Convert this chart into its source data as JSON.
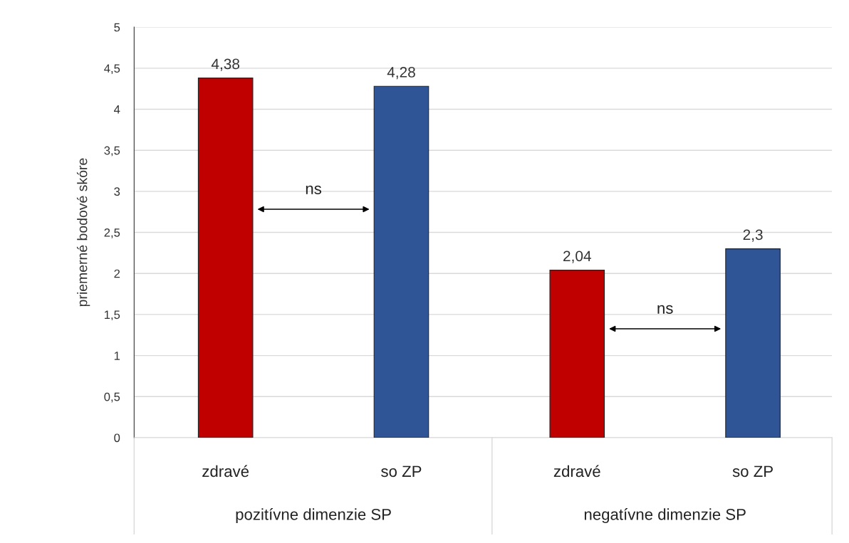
{
  "chart_data": {
    "type": "bar",
    "ylabel": "priemerné bodové skóre",
    "categories": [
      "zdravé",
      "so ZP",
      "zdravé",
      "so ZP"
    ],
    "values": [
      4.38,
      4.28,
      2.04,
      2.3
    ],
    "colors": [
      "#c00000",
      "#2f5597",
      "#c00000",
      "#2f5597"
    ],
    "value_labels": [
      "4,38",
      "4,28",
      "2,04",
      "2,3"
    ],
    "ylim": [
      0,
      5
    ],
    "yticks": [
      0,
      {
        "value": 0.5,
        "label": "0,5"
      },
      1,
      {
        "value": 1.5,
        "label": "1,5"
      },
      2,
      {
        "value": 2.5,
        "label": "2,5"
      },
      3,
      {
        "value": 3.5,
        "label": "3,5"
      },
      4,
      {
        "value": 4.5,
        "label": "4,5"
      },
      5
    ],
    "grid": "y",
    "annotations": [
      "ns",
      "ns",
      "pozitívne dimenzie SP",
      "negatívne dimenzie SP"
    ]
  }
}
